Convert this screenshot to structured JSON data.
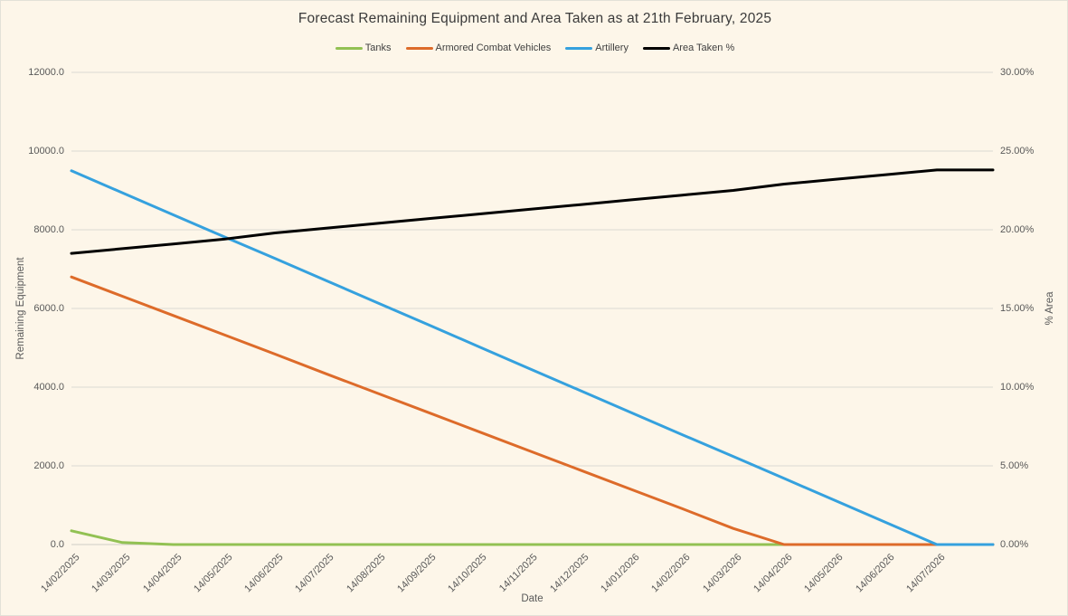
{
  "page": {
    "background": "#FDF6E9"
  },
  "chart_data": {
    "type": "line",
    "title": "Forecast Remaining Equipment and Area Taken as at 21th February, 2025",
    "legend_position": "top",
    "grid": true,
    "categories": [
      "14/02/2025",
      "14/03/2025",
      "14/04/2025",
      "14/05/2025",
      "14/06/2025",
      "14/07/2025",
      "14/08/2025",
      "14/09/2025",
      "14/10/2025",
      "14/11/2025",
      "14/12/2025",
      "14/01/2026",
      "14/02/2026",
      "14/03/2026",
      "14/04/2026",
      "14/05/2026",
      "14/06/2026",
      "14/07/2026"
    ],
    "series": [
      {
        "name": "Tanks",
        "color": "#92C153",
        "axis": "left",
        "values": [
          350,
          50,
          0,
          0,
          0,
          0,
          0,
          0,
          0,
          0,
          0,
          0,
          0,
          0,
          0,
          0,
          0,
          0
        ]
      },
      {
        "name": "Armored Combat Vehicles",
        "color": "#DD6B2A",
        "axis": "left",
        "values": [
          6800,
          6310,
          5820,
          5330,
          4840,
          4340,
          3850,
          3360,
          2870,
          2380,
          1890,
          1400,
          910,
          410,
          0,
          0,
          0,
          0
        ]
      },
      {
        "name": "Artillery",
        "color": "#35A1DE",
        "axis": "left",
        "values": [
          9500,
          8940,
          8380,
          7820,
          7270,
          6710,
          6150,
          5590,
          5030,
          4470,
          3910,
          3350,
          2790,
          2240,
          1680,
          1120,
          560,
          0
        ]
      },
      {
        "name": "Area Taken %",
        "color": "#000000",
        "axis": "right",
        "values": [
          18.5,
          18.8,
          19.1,
          19.4,
          19.8,
          20.1,
          20.4,
          20.7,
          21.0,
          21.3,
          21.6,
          21.9,
          22.2,
          22.5,
          22.9,
          23.2,
          23.5,
          23.8
        ]
      }
    ],
    "left_axis": {
      "title": "Remaining Equipment",
      "min": 0,
      "max": 12000,
      "ticks": [
        "12000.0",
        "10000.0",
        "8000.0",
        "6000.0",
        "4000.0",
        "2000.0",
        "0.0"
      ]
    },
    "right_axis": {
      "title": "% Area",
      "min": 0,
      "max": 30,
      "ticks": [
        "30.00%",
        "25.00%",
        "20.00%",
        "15.00%",
        "10.00%",
        "5.00%",
        "0.00%"
      ]
    },
    "x_axis": {
      "title": "Date"
    },
    "colors": {
      "gridline": "#DCDAD2",
      "baseline": "#CFCDC5",
      "tick_text": "#595959",
      "title_text": "#3A3A3A"
    }
  }
}
